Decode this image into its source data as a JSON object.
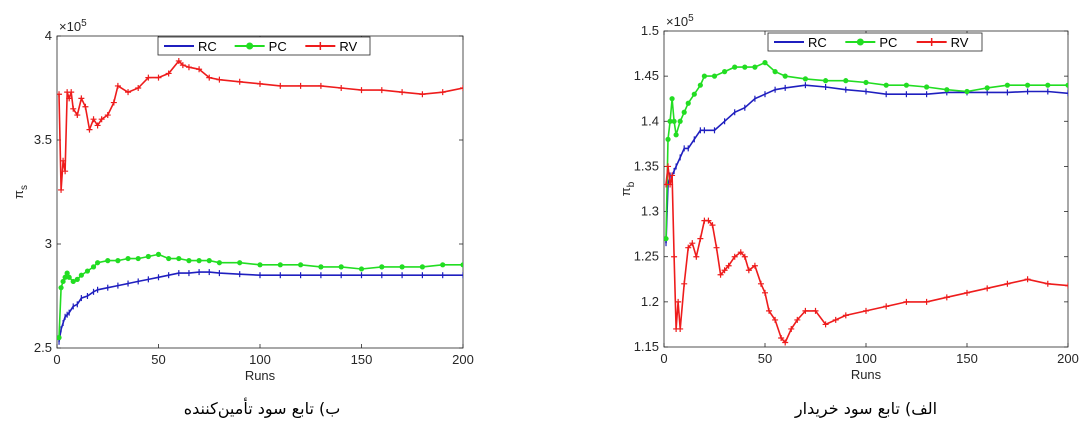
{
  "chart_data": [
    {
      "type": "line",
      "caption": "ب) تابع سود تأمین‌کننده",
      "xlabel": "Runs",
      "ylabel_main": "π",
      "ylabel_sub": "s",
      "multiplier_base": "×10",
      "multiplier_exp": "5",
      "xlim": [
        0,
        200
      ],
      "ylim": [
        2.5,
        4
      ],
      "xticks": [
        0,
        50,
        100,
        150,
        200
      ],
      "yticks": [
        2.5,
        3,
        3.5,
        4
      ],
      "ytick_labels": [
        "2.5",
        "3",
        "3.5",
        "4"
      ],
      "grid": false,
      "legend_position": "top-center",
      "series": [
        {
          "name": "RC",
          "color": "#1f1fbf",
          "marker": "bar",
          "x": [
            1,
            2,
            3,
            4,
            5,
            6,
            8,
            10,
            12,
            15,
            18,
            20,
            25,
            30,
            35,
            40,
            45,
            50,
            55,
            60,
            65,
            70,
            75,
            80,
            90,
            100,
            110,
            120,
            130,
            140,
            150,
            160,
            170,
            180,
            190,
            200
          ],
          "y": [
            2.53,
            2.59,
            2.62,
            2.65,
            2.66,
            2.67,
            2.7,
            2.71,
            2.74,
            2.75,
            2.77,
            2.78,
            2.79,
            2.8,
            2.81,
            2.82,
            2.83,
            2.84,
            2.85,
            2.86,
            2.86,
            2.865,
            2.865,
            2.86,
            2.855,
            2.85,
            2.85,
            2.85,
            2.85,
            2.85,
            2.85,
            2.85,
            2.85,
            2.85,
            2.85,
            2.85
          ]
        },
        {
          "name": "PC",
          "color": "#22dd22",
          "marker": "dot",
          "x": [
            1,
            2,
            3,
            4,
            5,
            6,
            8,
            10,
            12,
            15,
            18,
            20,
            25,
            30,
            35,
            40,
            45,
            50,
            55,
            60,
            65,
            70,
            75,
            80,
            90,
            100,
            110,
            120,
            130,
            140,
            150,
            160,
            170,
            180,
            190,
            200
          ],
          "y": [
            2.55,
            2.79,
            2.82,
            2.84,
            2.86,
            2.84,
            2.82,
            2.83,
            2.85,
            2.87,
            2.89,
            2.91,
            2.92,
            2.92,
            2.93,
            2.93,
            2.94,
            2.95,
            2.93,
            2.93,
            2.92,
            2.92,
            2.92,
            2.91,
            2.91,
            2.9,
            2.9,
            2.9,
            2.89,
            2.89,
            2.88,
            2.89,
            2.89,
            2.89,
            2.9,
            2.9
          ]
        },
        {
          "name": "RV",
          "color": "#ee1c1c",
          "marker": "plus",
          "x": [
            1,
            2,
            3,
            4,
            5,
            6,
            7,
            8,
            10,
            12,
            14,
            16,
            18,
            20,
            22,
            25,
            28,
            30,
            35,
            40,
            45,
            50,
            55,
            60,
            62,
            65,
            70,
            75,
            80,
            90,
            100,
            110,
            120,
            130,
            140,
            150,
            160,
            170,
            180,
            190,
            200
          ],
          "y": [
            3.72,
            3.26,
            3.4,
            3.35,
            3.73,
            3.7,
            3.73,
            3.65,
            3.62,
            3.7,
            3.66,
            3.55,
            3.6,
            3.57,
            3.6,
            3.62,
            3.68,
            3.76,
            3.73,
            3.75,
            3.8,
            3.8,
            3.82,
            3.88,
            3.86,
            3.85,
            3.84,
            3.8,
            3.79,
            3.78,
            3.77,
            3.76,
            3.76,
            3.76,
            3.75,
            3.74,
            3.74,
            3.73,
            3.72,
            3.73,
            3.75
          ]
        }
      ]
    },
    {
      "type": "line",
      "caption": "الف) تابع سود خریدار",
      "xlabel": "Runs",
      "ylabel_main": "π",
      "ylabel_sub": "b",
      "multiplier_base": "×10",
      "multiplier_exp": "5",
      "xlim": [
        0,
        200
      ],
      "ylim": [
        1.15,
        1.5
      ],
      "xticks": [
        0,
        50,
        100,
        150,
        200
      ],
      "yticks": [
        1.15,
        1.2,
        1.25,
        1.3,
        1.35,
        1.4,
        1.45,
        1.5
      ],
      "ytick_labels": [
        "1.15",
        "1.2",
        "1.25",
        "1.3",
        "1.35",
        "1.4",
        "1.45",
        "1.5"
      ],
      "grid": false,
      "legend_position": "top-center",
      "series": [
        {
          "name": "RC",
          "color": "#1f1fbf",
          "marker": "bar",
          "x": [
            1,
            2,
            3,
            4,
            5,
            6,
            8,
            10,
            12,
            15,
            18,
            20,
            25,
            30,
            35,
            40,
            45,
            50,
            55,
            60,
            70,
            80,
            90,
            100,
            110,
            120,
            130,
            140,
            150,
            160,
            170,
            180,
            190,
            200
          ],
          "y": [
            1.265,
            1.33,
            1.34,
            1.34,
            1.345,
            1.35,
            1.36,
            1.37,
            1.37,
            1.38,
            1.39,
            1.39,
            1.39,
            1.4,
            1.41,
            1.415,
            1.425,
            1.43,
            1.435,
            1.437,
            1.44,
            1.438,
            1.435,
            1.433,
            1.43,
            1.43,
            1.43,
            1.432,
            1.432,
            1.432,
            1.432,
            1.433,
            1.433,
            1.431
          ]
        },
        {
          "name": "PC",
          "color": "#22dd22",
          "marker": "dot",
          "x": [
            1,
            2,
            3,
            4,
            5,
            6,
            8,
            10,
            12,
            15,
            18,
            20,
            25,
            30,
            35,
            40,
            45,
            50,
            55,
            60,
            70,
            80,
            90,
            100,
            110,
            120,
            130,
            140,
            150,
            160,
            170,
            180,
            190,
            200
          ],
          "y": [
            1.27,
            1.38,
            1.4,
            1.425,
            1.4,
            1.385,
            1.4,
            1.41,
            1.42,
            1.43,
            1.44,
            1.45,
            1.45,
            1.455,
            1.46,
            1.46,
            1.46,
            1.465,
            1.455,
            1.45,
            1.447,
            1.445,
            1.445,
            1.443,
            1.44,
            1.44,
            1.438,
            1.435,
            1.433,
            1.437,
            1.44,
            1.44,
            1.44,
            1.44
          ]
        },
        {
          "name": "RV",
          "color": "#ee1c1c",
          "marker": "plus",
          "x": [
            1,
            2,
            3,
            4,
            5,
            6,
            7,
            8,
            10,
            12,
            14,
            16,
            18,
            20,
            22,
            24,
            26,
            28,
            30,
            32,
            35,
            38,
            40,
            42,
            45,
            48,
            50,
            52,
            55,
            58,
            60,
            63,
            66,
            70,
            75,
            80,
            85,
            90,
            100,
            110,
            120,
            130,
            140,
            150,
            160,
            170,
            180,
            190,
            200
          ],
          "y": [
            1.33,
            1.35,
            1.33,
            1.34,
            1.25,
            1.17,
            1.2,
            1.17,
            1.22,
            1.26,
            1.265,
            1.25,
            1.27,
            1.29,
            1.29,
            1.285,
            1.26,
            1.23,
            1.235,
            1.24,
            1.25,
            1.255,
            1.25,
            1.235,
            1.24,
            1.22,
            1.21,
            1.19,
            1.18,
            1.16,
            1.155,
            1.17,
            1.18,
            1.19,
            1.19,
            1.175,
            1.18,
            1.185,
            1.19,
            1.195,
            1.2,
            1.2,
            1.205,
            1.21,
            1.215,
            1.22,
            1.225,
            1.22,
            1.218
          ]
        }
      ]
    }
  ]
}
